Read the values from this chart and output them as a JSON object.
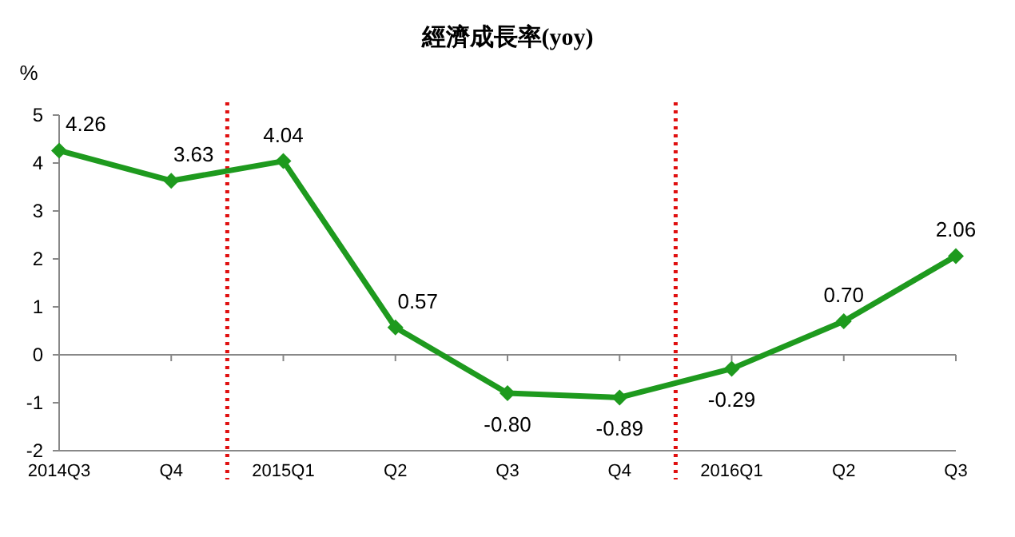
{
  "chart_data": {
    "type": "line",
    "title": "經濟成長率(yoy)",
    "ylabel": "%",
    "categories": [
      "2014Q3",
      "Q4",
      "2015Q1",
      "Q2",
      "Q3",
      "Q4",
      "2016Q1",
      "Q2",
      "Q3"
    ],
    "values": [
      4.26,
      3.63,
      4.04,
      0.57,
      -0.8,
      -0.89,
      -0.29,
      0.7,
      2.06
    ],
    "value_labels": [
      "4.26",
      "3.63",
      "4.04",
      "0.57",
      "-0.80",
      "-0.89",
      "-0.29",
      "0.70",
      "2.06"
    ],
    "color": "#1e9a1e",
    "marker": "diamond",
    "line_style": "solid",
    "ylim": [
      -2,
      5
    ],
    "yticks": [
      -2,
      -1,
      0,
      1,
      2,
      3,
      4,
      5
    ]
  }
}
